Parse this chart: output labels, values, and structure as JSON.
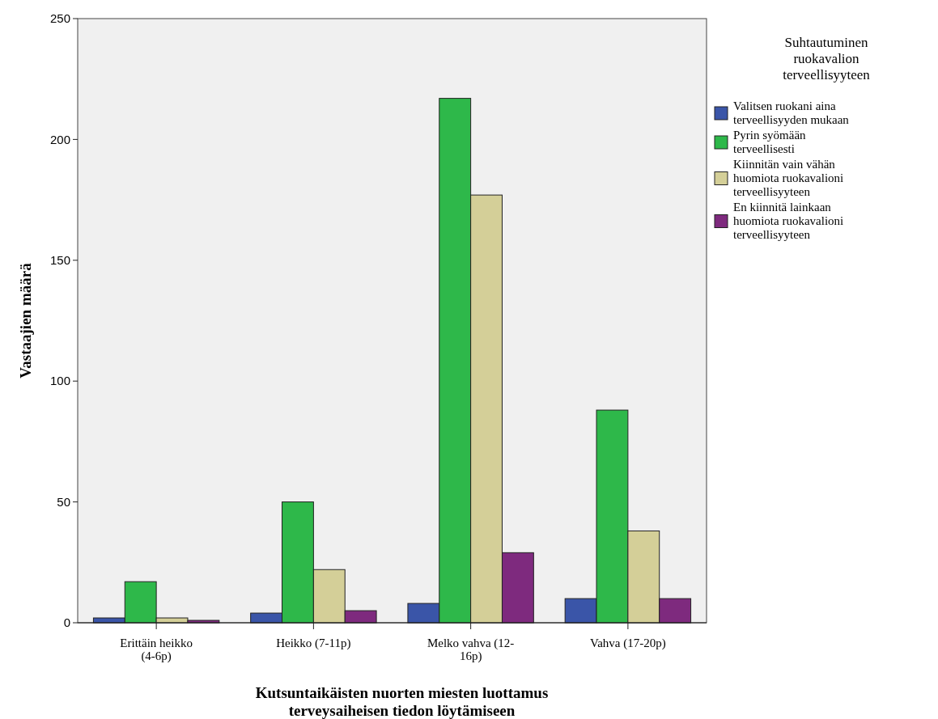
{
  "chart_data": {
    "type": "bar",
    "xlabel": "Kutsuntaikäisten nuorten miesten luottamus terveysaiheisen tiedon löytämiseen",
    "ylabel": "Vastaajien määrä",
    "legend_title": "Suhtautuminen ruokavalion terveellisyyteen",
    "categories": [
      "Erittäin heikko (4-6p)",
      "Heikko (7-11p)",
      "Melko vahva (12-16p)",
      "Vahva (17-20p)"
    ],
    "series": [
      {
        "name": "Valitsen ruokani aina terveellisyyden mukaan",
        "color": "#3a55a8",
        "values": [
          2,
          4,
          8,
          10
        ]
      },
      {
        "name": "Pyrin syömään terveellisesti",
        "color": "#2eb84a",
        "values": [
          17,
          50,
          217,
          88
        ]
      },
      {
        "name": "Kiinnitän vain vähän huomiota ruokavalioni terveellisyyteen",
        "color": "#d4cf98",
        "values": [
          2,
          22,
          177,
          38
        ]
      },
      {
        "name": "En kiinnitä lainkaan huomiota ruokavalioni terveellisyyteen",
        "color": "#7e2a7e",
        "values": [
          1,
          5,
          29,
          10
        ]
      }
    ],
    "ylim": [
      0,
      250
    ],
    "yticks": [
      0,
      50,
      100,
      150,
      200,
      250
    ],
    "grid": false,
    "legend": "right"
  }
}
